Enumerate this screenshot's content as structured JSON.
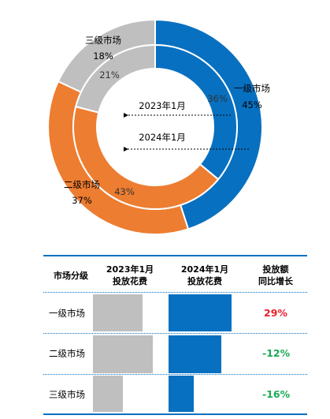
{
  "chart_data": [
    {
      "type": "donut",
      "center_labels": [
        "2023年1月",
        "2024年1月"
      ],
      "series": [
        {
          "name": "2023年1月",
          "ring": "inner",
          "categories": [
            "一级市场",
            "二级市场",
            "三级市场"
          ],
          "values": [
            36,
            43,
            21
          ],
          "labels": [
            "36%",
            "43%",
            "21%"
          ]
        },
        {
          "name": "2024年1月",
          "ring": "outer",
          "categories": [
            "一级市场",
            "二级市场",
            "三级市场"
          ],
          "values": [
            45,
            37,
            18
          ],
          "labels": [
            "45%",
            "37%",
            "18%"
          ]
        }
      ],
      "colors": {
        "一级市场": "#0870c0",
        "二级市场": "#ed7d31",
        "三级市场": "#bfbfbf"
      }
    },
    {
      "type": "table",
      "headers": [
        "市场分级",
        "2023年1月\n投放花费",
        "2024年1月\n投放花费",
        "投放额\n同比增长"
      ],
      "rows": [
        {
          "market": "一级市场",
          "spend_2023": 70,
          "spend_2024": 89,
          "growth": "29%",
          "growth_color": "#e8202a"
        },
        {
          "market": "二级市场",
          "spend_2023": 84,
          "spend_2024": 74,
          "growth": "-12%",
          "growth_color": "#1aaa55"
        },
        {
          "market": "三级市场",
          "spend_2023": 42,
          "spend_2024": 35,
          "growth": "-16%",
          "growth_color": "#1aaa55"
        }
      ],
      "bar_colors": {
        "spend_2023": "#bfbfbf",
        "spend_2024": "#0870c0"
      }
    }
  ]
}
